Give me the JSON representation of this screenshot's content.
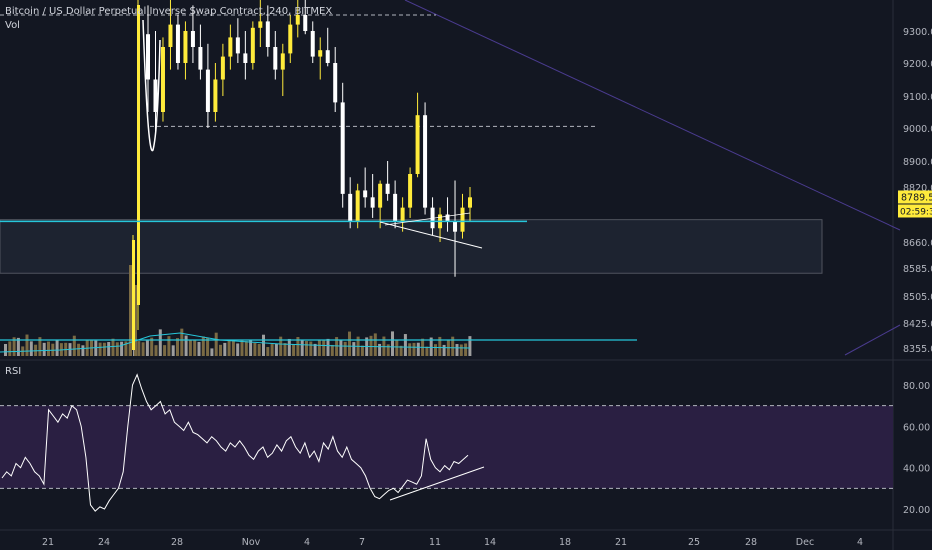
{
  "header": {
    "symbol": "Bitcoin / US Dollar Perpetual Inverse Swap Contract, 240, BITMEX",
    "volume_label": "Vol"
  },
  "rsi_pane": {
    "label": "RSI"
  },
  "price_badges": {
    "last_price": "8789.5",
    "countdown": "02:59:37"
  },
  "colors": {
    "background": "#131722",
    "up_candle": "#ffeb3b",
    "down_candle": "#ffffff",
    "vol_up": "#7a6a44",
    "vol_down": "#9e9e9e",
    "teal": "#26c6da",
    "rsi_band": "#2a1f42",
    "rsi_line": "#ffffff",
    "diag_line": "#4a3b8f"
  },
  "chart_data": [
    {
      "type": "candlestick",
      "title": "",
      "y_ticks": [
        9300.0,
        9200.0,
        9100.0,
        9000.0,
        8900.0,
        8820.0,
        8660.0,
        8585.0,
        8505.0,
        8425.0,
        8355.0
      ],
      "y_tick_labels": [
        "9300.0",
        "9200.0",
        "9100.0",
        "9000.0",
        "8900.0",
        "8820.0",
        "8660.0",
        "8585.0",
        "8505.0",
        "8425.0",
        "8355.0"
      ],
      "x_tick_labels": [
        "21",
        "24",
        "28",
        "Nov",
        "4",
        "7",
        "11",
        "14",
        "18",
        "21",
        "25",
        "28",
        "Dec",
        "4"
      ],
      "last_price": 8789.5,
      "levels": {
        "support_teal": 8720,
        "resistance_dashed_top": 9350,
        "resistance_dashed_mid": 9005,
        "support_zone": [
          8570,
          8725
        ]
      },
      "series": [
        {
          "ohlc": [
            [
              9290,
              9380,
              9050,
              9150
            ],
            [
              9150,
              9300,
              8980,
              9050
            ],
            [
              9050,
              9280,
              9020,
              9250
            ],
            [
              9250,
              9400,
              9180,
              9320
            ],
            [
              9320,
              9350,
              9180,
              9200
            ],
            [
              9200,
              9330,
              9150,
              9300
            ],
            [
              9300,
              9380,
              9200,
              9250
            ],
            [
              9250,
              9320,
              9150,
              9180
            ],
            [
              9180,
              9260,
              9000,
              9050
            ],
            [
              9050,
              9200,
              9020,
              9150
            ],
            [
              9150,
              9260,
              9100,
              9220
            ],
            [
              9220,
              9320,
              9180,
              9280
            ],
            [
              9280,
              9340,
              9200,
              9230
            ],
            [
              9230,
              9300,
              9150,
              9200
            ],
            [
              9200,
              9330,
              9180,
              9310
            ],
            [
              9310,
              9400,
              9250,
              9330
            ],
            [
              9330,
              9380,
              9220,
              9250
            ],
            [
              9250,
              9300,
              9150,
              9180
            ],
            [
              9180,
              9260,
              9100,
              9230
            ],
            [
              9230,
              9350,
              9200,
              9320
            ],
            [
              9320,
              9400,
              9280,
              9350
            ],
            [
              9350,
              9420,
              9290,
              9300
            ],
            [
              9300,
              9330,
              9200,
              9220
            ],
            [
              9220,
              9280,
              9150,
              9240
            ],
            [
              9240,
              9310,
              9190,
              9200
            ],
            [
              9200,
              9250,
              9050,
              9080
            ],
            [
              9080,
              9140,
              8760,
              8800
            ],
            [
              8800,
              8850,
              8700,
              8720
            ],
            [
              8720,
              8830,
              8700,
              8810
            ],
            [
              8810,
              8880,
              8760,
              8790
            ],
            [
              8790,
              8860,
              8730,
              8760
            ],
            [
              8760,
              8840,
              8700,
              8830
            ],
            [
              8830,
              8900,
              8780,
              8800
            ],
            [
              8800,
              8840,
              8700,
              8720
            ],
            [
              8720,
              8790,
              8690,
              8760
            ],
            [
              8760,
              8880,
              8730,
              8860
            ],
            [
              8860,
              9110,
              8850,
              9040
            ],
            [
              9040,
              9080,
              8740,
              8760
            ],
            [
              8760,
              8790,
              8680,
              8700
            ],
            [
              8700,
              8760,
              8660,
              8740
            ],
            [
              8740,
              8790,
              8690,
              8720
            ],
            [
              8720,
              8840,
              8560,
              8690
            ],
            [
              8690,
              8800,
              8670,
              8760
            ],
            [
              8760,
              8820,
              8720,
              8790
            ]
          ]
        }
      ]
    },
    {
      "type": "bar",
      "title": "Vol",
      "values": [
        30,
        22,
        40,
        28,
        18,
        35,
        25,
        20,
        30,
        26,
        22,
        28,
        24,
        30,
        20,
        26,
        32,
        22,
        18,
        26,
        30,
        24,
        28,
        20,
        34,
        26,
        30,
        22,
        28,
        24,
        36,
        26,
        22,
        30,
        28,
        24,
        40,
        26,
        30,
        22,
        28,
        50,
        34,
        26
      ]
    },
    {
      "type": "line",
      "title": "RSI",
      "y_ticks": [
        80.0,
        60.0,
        40.0,
        20.0
      ],
      "y_tick_labels": [
        "80.00",
        "60.00",
        "40.00",
        "20.00"
      ],
      "bands": {
        "upper": 70,
        "lower": 30
      },
      "values": [
        35,
        38,
        36,
        42,
        40,
        45,
        42,
        38,
        36,
        32,
        68,
        65,
        62,
        66,
        64,
        70,
        68,
        60,
        45,
        22,
        19,
        21,
        20,
        24,
        27,
        30,
        38,
        60,
        80,
        85,
        78,
        72,
        68,
        70,
        72,
        66,
        68,
        62,
        60,
        58,
        62,
        57,
        56,
        54,
        52,
        55,
        53,
        50,
        48,
        52,
        50,
        53,
        50,
        46,
        44,
        48,
        50,
        45,
        47,
        51,
        48,
        53,
        55,
        50,
        47,
        52,
        45,
        48,
        43,
        52,
        49,
        55,
        48,
        45,
        50,
        44,
        42,
        40,
        36,
        30,
        26,
        25,
        27,
        29,
        30,
        28,
        31,
        34,
        33,
        32,
        36,
        54,
        44,
        40,
        38,
        41,
        39,
        43,
        42,
        44,
        46
      ]
    }
  ]
}
